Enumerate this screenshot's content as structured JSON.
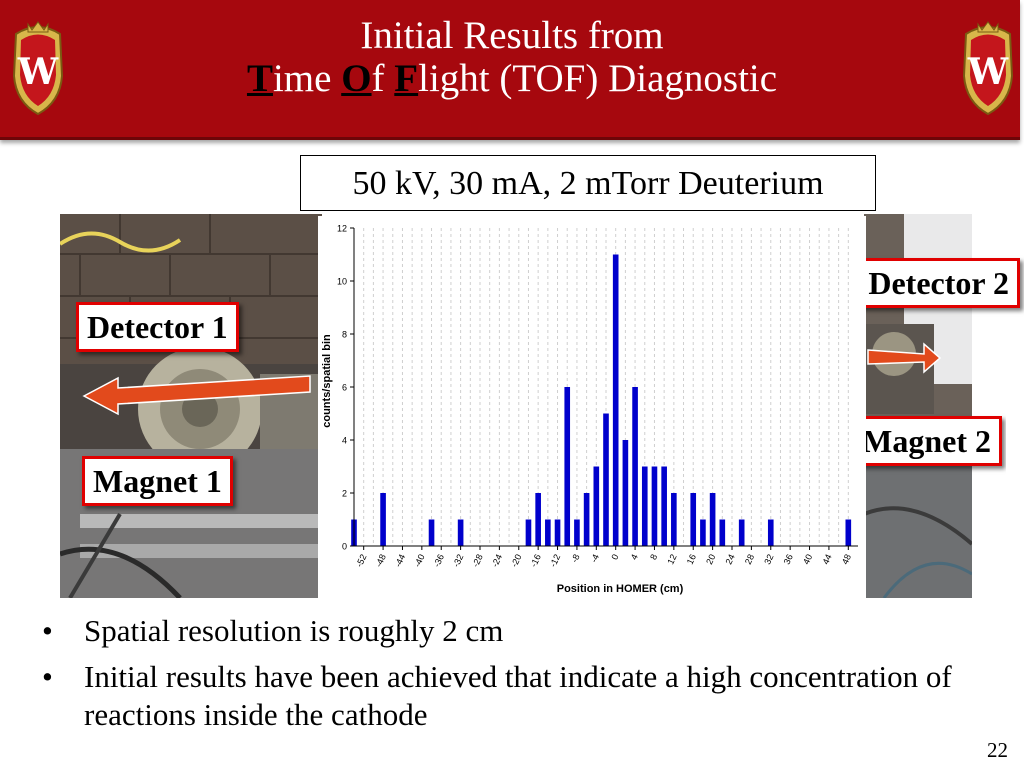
{
  "slide": {
    "title_line1": "Initial Results from",
    "title_line2": {
      "part1_bold": "T",
      "part1": "ime ",
      "part2_bold": "O",
      "part2": "f ",
      "part3_bold": "F",
      "part3": "light (TOF) Diagnostic"
    },
    "conditions": "50 kV, 30 mA, 2 mTorr Deuterium",
    "labels": {
      "detector1": "Detector 1",
      "magnet1": "Magnet 1",
      "detector2": "Detector 2",
      "magnet2": "Magnet 2"
    },
    "bullets": [
      "Spatial resolution is roughly 2 cm",
      "Initial results have been achieved that indicate a high concentration of reactions inside the cathode"
    ],
    "page_number": "22",
    "crest_letter": "W",
    "colors": {
      "banner": "#a6080e",
      "label_border": "#e00000",
      "arrow": "#e24a1c",
      "bars": "#0000cc"
    }
  },
  "chart_data": {
    "type": "bar",
    "xlabel": "Position in HOMER (cm)",
    "ylabel": "counts/spatial bin",
    "ylim": [
      0,
      12
    ],
    "yticks": [
      0,
      2,
      4,
      6,
      8,
      10,
      12
    ],
    "xlim": [
      -54,
      50
    ],
    "xticks": [
      -52,
      -48,
      -44,
      -40,
      -36,
      -32,
      -28,
      -24,
      -20,
      -16,
      -12,
      -8,
      -4,
      0,
      4,
      8,
      12,
      16,
      20,
      24,
      28,
      32,
      36,
      40,
      44,
      48
    ],
    "bin_width": 2,
    "grid": "vertical",
    "x": [
      -54,
      -52,
      -50,
      -48,
      -46,
      -44,
      -42,
      -40,
      -38,
      -36,
      -34,
      -32,
      -30,
      -28,
      -26,
      -24,
      -22,
      -20,
      -18,
      -16,
      -14,
      -12,
      -10,
      -8,
      -6,
      -4,
      -2,
      0,
      2,
      4,
      6,
      8,
      10,
      12,
      14,
      16,
      18,
      20,
      22,
      24,
      26,
      28,
      30,
      32,
      34,
      36,
      38,
      40,
      42,
      44,
      46,
      48
    ],
    "values": [
      1,
      0,
      0,
      2,
      0,
      0,
      0,
      0,
      1,
      0,
      0,
      1,
      0,
      0,
      0,
      0,
      0,
      0,
      1,
      2,
      1,
      1,
      6,
      1,
      2,
      3,
      5,
      11,
      4,
      6,
      3,
      3,
      3,
      2,
      0,
      2,
      1,
      2,
      1,
      0,
      1,
      0,
      0,
      1,
      0,
      0,
      0,
      0,
      0,
      0,
      0,
      1
    ]
  }
}
